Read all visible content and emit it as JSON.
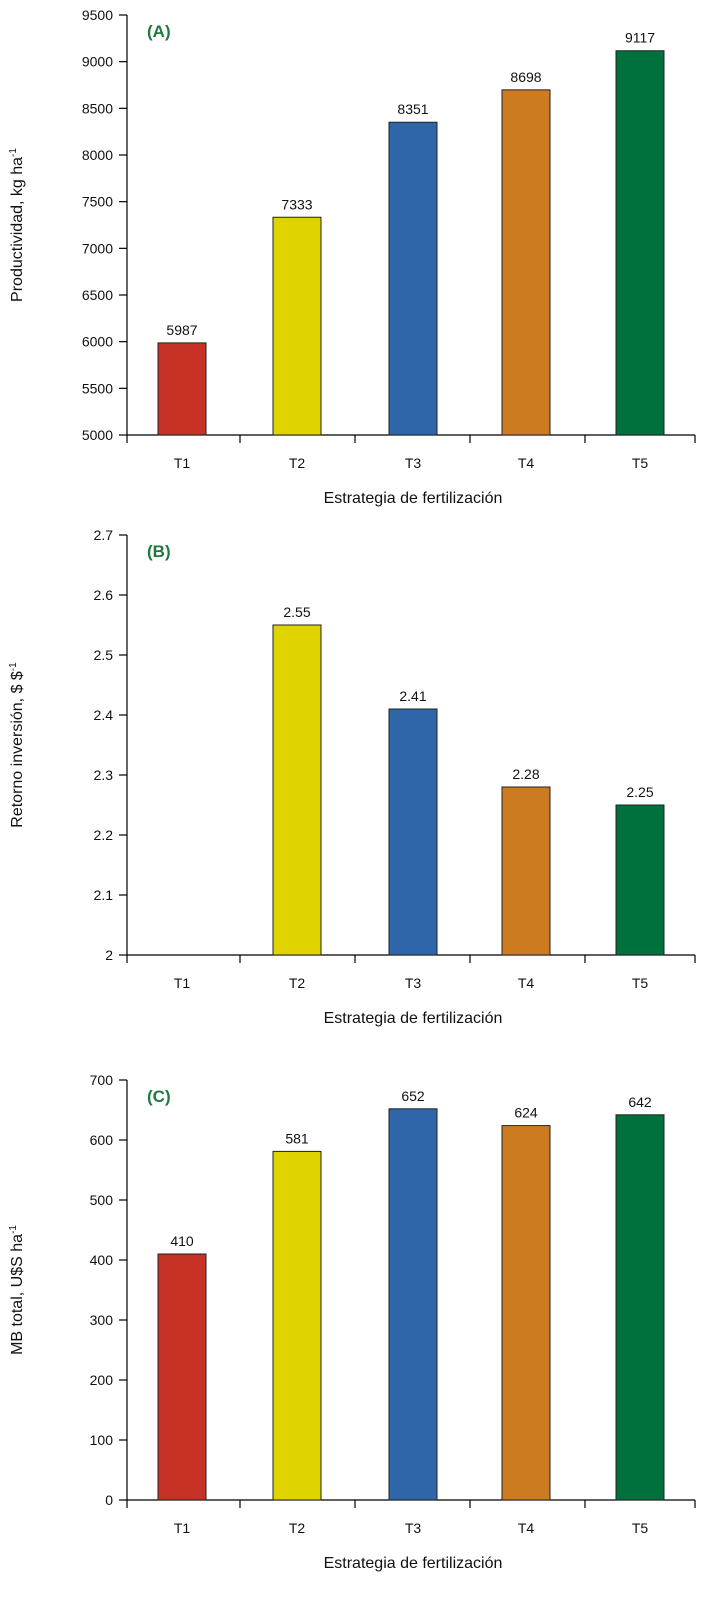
{
  "panel_tag_color": "#1e7a3c",
  "bar_colors": [
    "#c73227",
    "#dfd300",
    "#2e66a9",
    "#cd7b21",
    "#00703c"
  ],
  "chart_data": [
    {
      "type": "bar",
      "panel": "(A)",
      "categories": [
        "T1",
        "T2",
        "T3",
        "T4",
        "T5"
      ],
      "values": [
        5987,
        7333,
        8351,
        8698,
        9117
      ],
      "value_labels": [
        "5987",
        "7333",
        "8351",
        "8698",
        "9117"
      ],
      "xlabel": "Estrategia de fertilización",
      "ylabel": "Productividad, kg ha",
      "ylabel_sup": "-1",
      "ylim": [
        5000,
        9500
      ],
      "yticks": [
        5000,
        5500,
        6000,
        6500,
        7000,
        7500,
        8000,
        8500,
        9000,
        9500
      ],
      "ytick_labels": [
        "5000",
        "5500",
        "6000",
        "6500",
        "7000",
        "7500",
        "8000",
        "8500",
        "9000",
        "9500"
      ],
      "grid": false
    },
    {
      "type": "bar",
      "panel": "(B)",
      "categories": [
        "T1",
        "T2",
        "T3",
        "T4",
        "T5"
      ],
      "values": [
        null,
        2.55,
        2.41,
        2.28,
        2.25
      ],
      "value_labels": [
        "",
        "2.55",
        "2.41",
        "2.28",
        "2.25"
      ],
      "xlabel": "Estrategia de fertilización",
      "ylabel": "Retorno inversión, $ $",
      "ylabel_sup": "-1",
      "ylim": [
        2,
        2.7
      ],
      "yticks": [
        2,
        2.1,
        2.2,
        2.3,
        2.4,
        2.5,
        2.6,
        2.7
      ],
      "ytick_labels": [
        "2",
        "2.1",
        "2.2",
        "2.3",
        "2.4",
        "2.5",
        "2.6",
        "2.7"
      ],
      "grid": false
    },
    {
      "type": "bar",
      "panel": "(C)",
      "categories": [
        "T1",
        "T2",
        "T3",
        "T4",
        "T5"
      ],
      "values": [
        410,
        581,
        652,
        624,
        642
      ],
      "value_labels": [
        "410",
        "581",
        "652",
        "624",
        "642"
      ],
      "xlabel": "Estrategia de fertilización",
      "ylabel": "MB total, U$S ha",
      "ylabel_sup": "-1",
      "ylim": [
        0,
        700
      ],
      "yticks": [
        0,
        100,
        200,
        300,
        400,
        500,
        600,
        700
      ],
      "ytick_labels": [
        "0",
        "100",
        "200",
        "300",
        "400",
        "500",
        "600",
        "700"
      ],
      "grid": false
    }
  ]
}
